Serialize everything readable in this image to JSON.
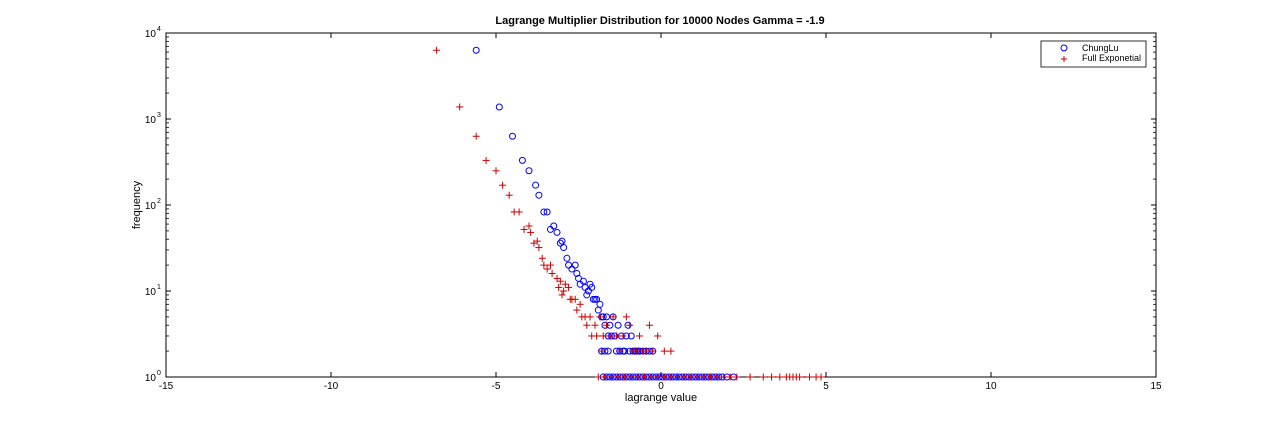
{
  "chart_data": {
    "type": "scatter",
    "title": "Lagrange Multiplier Distribution for 10000 Nodes Gamma = -1.9",
    "xlabel": "lagrange value",
    "ylabel": "frequency",
    "xlim": [
      -15,
      15
    ],
    "ylim": [
      1,
      10000
    ],
    "yscale": "log",
    "grid": false,
    "legend_position": "top-right",
    "x_ticks": [
      -15,
      -10,
      -5,
      0,
      5,
      10,
      15
    ],
    "x_tick_labels": [
      "-15",
      "-10",
      "-5",
      "0",
      "5",
      "10",
      "15"
    ],
    "y_ticks": [
      1,
      10,
      100,
      1000,
      10000
    ],
    "y_tick_bases": [
      "10",
      "10",
      "10",
      "10",
      "10"
    ],
    "y_tick_exponents": [
      "0",
      "1",
      "2",
      "3",
      "4"
    ],
    "series": [
      {
        "name": "ChungLu",
        "marker": "circle",
        "color": "#0000ff",
        "points": [
          [
            -5.6,
            6300
          ],
          [
            -4.9,
            1380
          ],
          [
            -4.5,
            630
          ],
          [
            -4.2,
            330
          ],
          [
            -4.0,
            250
          ],
          [
            -3.8,
            170
          ],
          [
            -3.7,
            130
          ],
          [
            -3.55,
            83
          ],
          [
            -3.45,
            83
          ],
          [
            -3.35,
            52
          ],
          [
            -3.25,
            57
          ],
          [
            -3.15,
            48
          ],
          [
            -3.05,
            36
          ],
          [
            -3.0,
            38
          ],
          [
            -2.95,
            32
          ],
          [
            -2.85,
            24
          ],
          [
            -2.8,
            20
          ],
          [
            -2.7,
            18
          ],
          [
            -2.6,
            20
          ],
          [
            -2.55,
            16
          ],
          [
            -2.5,
            14
          ],
          [
            -2.45,
            12
          ],
          [
            -2.35,
            13
          ],
          [
            -2.3,
            11
          ],
          [
            -2.25,
            9
          ],
          [
            -2.2,
            10
          ],
          [
            -2.15,
            12
          ],
          [
            -2.1,
            11
          ],
          [
            -2.05,
            8
          ],
          [
            -2.0,
            8
          ],
          [
            -1.95,
            8
          ],
          [
            -1.9,
            6
          ],
          [
            -1.85,
            7
          ],
          [
            -1.8,
            5
          ],
          [
            -1.75,
            5
          ],
          [
            -1.7,
            4
          ],
          [
            -1.65,
            5
          ],
          [
            -1.6,
            3
          ],
          [
            -1.55,
            4
          ],
          [
            -1.5,
            3
          ],
          [
            -1.45,
            5
          ],
          [
            -1.4,
            3
          ],
          [
            -1.35,
            2
          ],
          [
            -1.3,
            4
          ],
          [
            -1.25,
            2
          ],
          [
            -1.2,
            3
          ],
          [
            -1.15,
            2
          ],
          [
            -1.1,
            2
          ],
          [
            -1.05,
            3
          ],
          [
            -1.0,
            4
          ],
          [
            -0.95,
            2
          ],
          [
            -0.9,
            3
          ],
          [
            -0.85,
            2
          ],
          [
            -0.8,
            2
          ],
          [
            -0.75,
            2
          ],
          [
            -0.7,
            2
          ],
          [
            -0.65,
            2
          ],
          [
            -0.55,
            2
          ],
          [
            -0.45,
            2
          ],
          [
            -0.35,
            2
          ],
          [
            -0.25,
            2
          ],
          [
            -1.8,
            2
          ],
          [
            -1.7,
            2
          ],
          [
            -1.6,
            2
          ],
          [
            -1.75,
            1
          ],
          [
            -1.65,
            1
          ],
          [
            -1.55,
            1
          ],
          [
            -1.45,
            1
          ],
          [
            -1.35,
            1
          ],
          [
            -1.25,
            1
          ],
          [
            -1.15,
            1
          ],
          [
            -1.05,
            1
          ],
          [
            -0.95,
            1
          ],
          [
            -0.85,
            1
          ],
          [
            -0.75,
            1
          ],
          [
            -0.65,
            1
          ],
          [
            -0.55,
            1
          ],
          [
            -0.45,
            1
          ],
          [
            -0.35,
            1
          ],
          [
            -0.25,
            1
          ],
          [
            -0.15,
            1
          ],
          [
            -0.05,
            1
          ],
          [
            0.05,
            1
          ],
          [
            0.15,
            1
          ],
          [
            0.25,
            1
          ],
          [
            0.35,
            1
          ],
          [
            0.45,
            1
          ],
          [
            0.55,
            1
          ],
          [
            0.65,
            1
          ],
          [
            0.75,
            1
          ],
          [
            0.85,
            1
          ],
          [
            0.95,
            1
          ],
          [
            1.05,
            1
          ],
          [
            1.15,
            1
          ],
          [
            1.25,
            1
          ],
          [
            1.35,
            1
          ],
          [
            1.45,
            1
          ],
          [
            1.55,
            1
          ],
          [
            1.65,
            1
          ],
          [
            1.75,
            1
          ],
          [
            1.85,
            1
          ],
          [
            2.0,
            1
          ],
          [
            2.2,
            1
          ]
        ]
      },
      {
        "name": "Full Exponetial",
        "marker": "plus",
        "color": "#cc0000",
        "points": [
          [
            -6.8,
            6300
          ],
          [
            -6.1,
            1380
          ],
          [
            -5.6,
            630
          ],
          [
            -5.3,
            330
          ],
          [
            -5.0,
            250
          ],
          [
            -4.8,
            170
          ],
          [
            -4.6,
            130
          ],
          [
            -4.45,
            83
          ],
          [
            -4.3,
            83
          ],
          [
            -4.15,
            52
          ],
          [
            -4.0,
            57
          ],
          [
            -3.95,
            48
          ],
          [
            -3.85,
            36
          ],
          [
            -3.75,
            38
          ],
          [
            -3.7,
            32
          ],
          [
            -3.6,
            24
          ],
          [
            -3.55,
            20
          ],
          [
            -3.45,
            18
          ],
          [
            -3.35,
            20
          ],
          [
            -3.3,
            16
          ],
          [
            -3.15,
            14
          ],
          [
            -3.1,
            11
          ],
          [
            -3.05,
            13
          ],
          [
            -3.0,
            9
          ],
          [
            -2.95,
            10
          ],
          [
            -2.9,
            12
          ],
          [
            -2.8,
            11
          ],
          [
            -2.75,
            8
          ],
          [
            -2.7,
            8
          ],
          [
            -2.6,
            8
          ],
          [
            -2.55,
            6
          ],
          [
            -2.45,
            7
          ],
          [
            -2.4,
            5
          ],
          [
            -2.3,
            5
          ],
          [
            -2.25,
            4
          ],
          [
            -2.15,
            5
          ],
          [
            -2.1,
            3
          ],
          [
            -2.0,
            4
          ],
          [
            -1.95,
            3
          ],
          [
            -1.85,
            5
          ],
          [
            -1.75,
            3
          ],
          [
            -1.65,
            4
          ],
          [
            -1.55,
            3
          ],
          [
            -1.45,
            5
          ],
          [
            -1.35,
            3
          ],
          [
            -1.25,
            2
          ],
          [
            -1.15,
            3
          ],
          [
            -1.05,
            5
          ],
          [
            -0.95,
            4
          ],
          [
            -0.85,
            2
          ],
          [
            -0.75,
            2
          ],
          [
            -0.65,
            3
          ],
          [
            -0.55,
            2
          ],
          [
            -0.45,
            2
          ],
          [
            -0.35,
            4
          ],
          [
            -0.25,
            2
          ],
          [
            -0.1,
            3
          ],
          [
            0.1,
            2
          ],
          [
            0.3,
            2
          ],
          [
            -1.8,
            2
          ],
          [
            -1.9,
            1
          ],
          [
            -1.7,
            1
          ],
          [
            -1.5,
            1
          ],
          [
            -1.3,
            1
          ],
          [
            -1.1,
            1
          ],
          [
            -0.9,
            1
          ],
          [
            -0.7,
            1
          ],
          [
            -0.5,
            1
          ],
          [
            -0.3,
            1
          ],
          [
            -0.1,
            1
          ],
          [
            0.1,
            1
          ],
          [
            0.3,
            1
          ],
          [
            0.5,
            1
          ],
          [
            0.7,
            1
          ],
          [
            0.9,
            1
          ],
          [
            1.1,
            1
          ],
          [
            1.3,
            1
          ],
          [
            1.5,
            1
          ],
          [
            1.7,
            1
          ],
          [
            1.9,
            1
          ],
          [
            2.1,
            1
          ],
          [
            2.3,
            1
          ],
          [
            2.7,
            1
          ],
          [
            3.1,
            1
          ],
          [
            3.35,
            1
          ],
          [
            3.6,
            1
          ],
          [
            3.8,
            1
          ],
          [
            3.9,
            1
          ],
          [
            4.0,
            1
          ],
          [
            4.1,
            1
          ],
          [
            4.2,
            1
          ],
          [
            4.5,
            1
          ],
          [
            4.7,
            1
          ],
          [
            4.85,
            1
          ]
        ]
      }
    ]
  }
}
